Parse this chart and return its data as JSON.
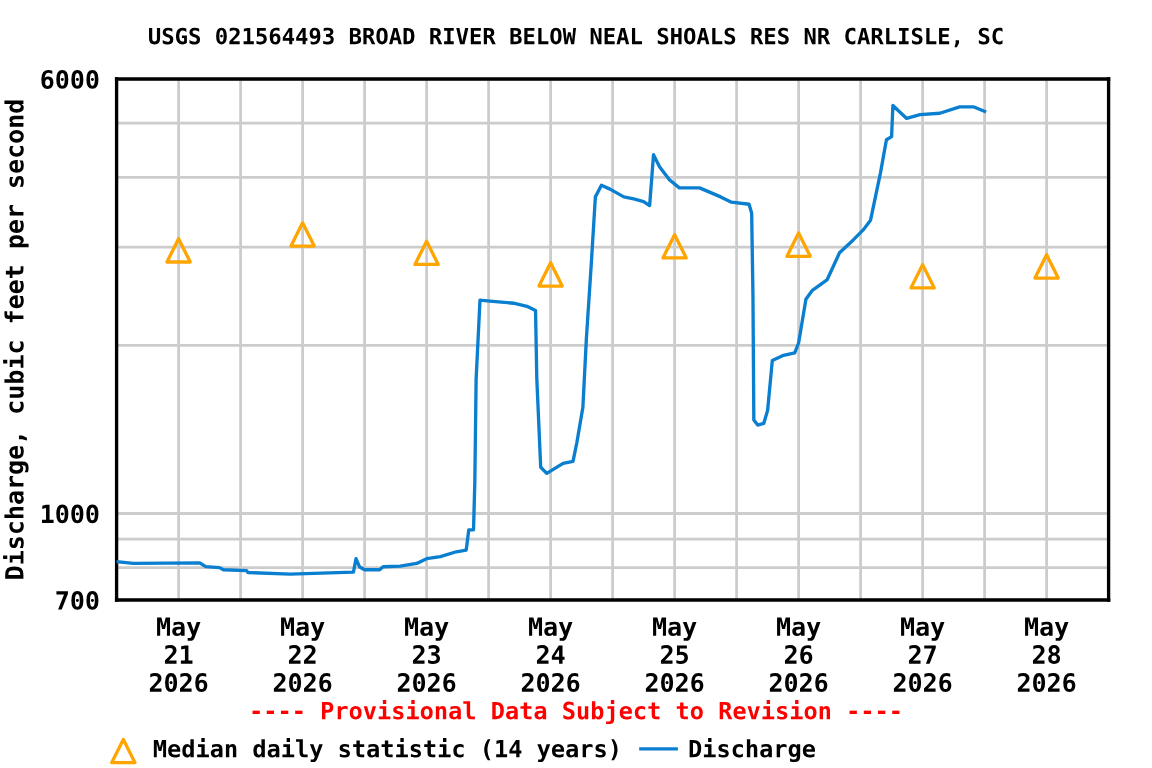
{
  "chart_data": {
    "type": "line",
    "title": "USGS 021564493 BROAD RIVER BELOW NEAL SHOALS RES NR CARLISLE, SC",
    "ylabel": "Discharge, cubic feet per second",
    "annotations": [
      "---- Provisional Data Subject to Revision ----"
    ],
    "log": "y",
    "grid": true,
    "legend": "bottom",
    "xlim": [
      "2026-05-21T00:00",
      "2026-05-29T00:00"
    ],
    "xticks": [
      {
        "value": "2026-05-21T00:00",
        "label": null
      },
      {
        "value": "2026-05-21T12:00",
        "label": "May\n21\n2026"
      },
      {
        "value": "2026-05-22T00:00",
        "label": null
      },
      {
        "value": "2026-05-22T12:00",
        "label": "May\n22\n2026"
      },
      {
        "value": "2026-05-23T00:00",
        "label": null
      },
      {
        "value": "2026-05-23T12:00",
        "label": "May\n23\n2026"
      },
      {
        "value": "2026-05-24T00:00",
        "label": null
      },
      {
        "value": "2026-05-24T12:00",
        "label": "May\n24\n2026"
      },
      {
        "value": "2026-05-25T00:00",
        "label": null
      },
      {
        "value": "2026-05-25T12:00",
        "label": "May\n25\n2026"
      },
      {
        "value": "2026-05-26T00:00",
        "label": null
      },
      {
        "value": "2026-05-26T12:00",
        "label": "May\n26\n2026"
      },
      {
        "value": "2026-05-27T00:00",
        "label": null
      },
      {
        "value": "2026-05-27T12:00",
        "label": "May\n27\n2026"
      },
      {
        "value": "2026-05-28T00:00",
        "label": null
      },
      {
        "value": "2026-05-28T12:00",
        "label": "May\n28\n2026"
      },
      {
        "value": "2026-05-29T00:00",
        "label": null
      }
    ],
    "ylim": [
      700,
      6000
    ],
    "yticks": [
      700,
      {
        "value": 800,
        "label": null
      },
      {
        "value": 900,
        "label": null
      },
      1000,
      {
        "value": 2000,
        "label": null
      },
      {
        "value": 3000,
        "label": null
      },
      {
        "value": 4000,
        "label": null
      },
      {
        "value": 5000,
        "label": null
      },
      6000
    ],
    "series": [
      {
        "name": "Median daily statistic (14 years)",
        "type": "scatter",
        "marker": "triangle",
        "color": "#ffa500",
        "x": [
          "2026-05-21T12:00",
          "2026-05-22T12:00",
          "2026-05-23T12:00",
          "2026-05-24T12:00",
          "2026-05-25T12:00",
          "2026-05-26T12:00",
          "2026-05-27T12:00",
          "2026-05-28T12:00"
        ],
        "values": [
          2960,
          3160,
          2930,
          2680,
          3010,
          3030,
          2660,
          2770
        ]
      },
      {
        "name": "Discharge",
        "marker": "none",
        "line_style": "solid",
        "color": "#0a7fd0",
        "x": [
          "2026-05-21T00:00",
          "2026-05-21T03:15",
          "2026-05-21T16:05",
          "2026-05-21T17:15",
          "2026-05-21T19:55",
          "2026-05-21T20:40",
          "2026-05-22T01:10",
          "2026-05-22T01:25",
          "2026-05-22T09:35",
          "2026-05-22T21:50",
          "2026-05-22T22:20",
          "2026-05-22T23:00",
          "2026-05-23T00:00",
          "2026-05-23T02:55",
          "2026-05-23T03:35",
          "2026-05-23T06:55",
          "2026-05-23T10:05",
          "2026-05-23T12:00",
          "2026-05-23T14:40",
          "2026-05-23T17:45",
          "2026-05-23T19:40",
          "2026-05-23T20:10",
          "2026-05-23T21:05",
          "2026-05-23T21:20",
          "2026-05-23T21:35",
          "2026-05-23T22:20",
          "2026-05-24T00:15",
          "2026-05-24T04:50",
          "2026-05-24T07:25",
          "2026-05-24T09:05",
          "2026-05-24T09:20",
          "2026-05-24T10:05",
          "2026-05-24T11:15",
          "2026-05-24T14:25",
          "2026-05-24T16:20",
          "2026-05-24T17:05",
          "2026-05-24T18:15",
          "2026-05-24T18:55",
          "2026-05-24T19:55",
          "2026-05-24T20:40",
          "2026-05-24T21:50",
          "2026-05-24T23:30",
          "2026-05-25T02:10",
          "2026-05-25T04:05",
          "2026-05-25T06:00",
          "2026-05-25T07:10",
          "2026-05-25T07:55",
          "2026-05-25T09:05",
          "2026-05-25T11:00",
          "2026-05-25T12:55",
          "2026-05-25T16:50",
          "2026-05-25T20:55",
          "2026-05-25T23:00",
          "2026-05-26T02:25",
          "2026-05-26T02:55",
          "2026-05-26T03:10",
          "2026-05-26T03:20",
          "2026-05-26T04:05",
          "2026-05-26T05:15",
          "2026-05-26T06:00",
          "2026-05-26T06:55",
          "2026-05-26T09:05",
          "2026-05-26T11:15",
          "2026-05-26T12:00",
          "2026-05-26T13:25",
          "2026-05-26T14:40",
          "2026-05-26T17:30",
          "2026-05-26T19:55",
          "2026-05-26T22:35",
          "2026-05-27T00:30",
          "2026-05-27T01:55",
          "2026-05-27T03:50",
          "2026-05-27T05:00",
          "2026-05-27T06:00",
          "2026-05-27T06:15",
          "2026-05-27T08:55",
          "2026-05-27T11:30",
          "2026-05-27T15:20",
          "2026-05-27T19:10",
          "2026-05-27T21:50",
          "2026-05-28T00:00"
        ],
        "values": [
          820,
          814,
          816,
          803,
          800,
          793,
          790,
          784,
          779,
          785,
          830,
          803,
          793,
          793,
          803,
          805,
          814,
          830,
          837,
          854,
          860,
          935,
          935,
          1140,
          1740,
          2410,
          2400,
          2380,
          2350,
          2310,
          1740,
          1210,
          1180,
          1230,
          1240,
          1340,
          1550,
          2050,
          2840,
          3690,
          3870,
          3810,
          3690,
          3660,
          3620,
          3560,
          4390,
          4180,
          3960,
          3830,
          3830,
          3690,
          3610,
          3580,
          3450,
          2450,
          1470,
          1440,
          1450,
          1530,
          1880,
          1920,
          1940,
          2020,
          2420,
          2510,
          2620,
          2930,
          3090,
          3220,
          3350,
          4070,
          4670,
          4730,
          5380,
          5100,
          5180,
          5210,
          5350,
          5350,
          5250
        ]
      }
    ]
  }
}
